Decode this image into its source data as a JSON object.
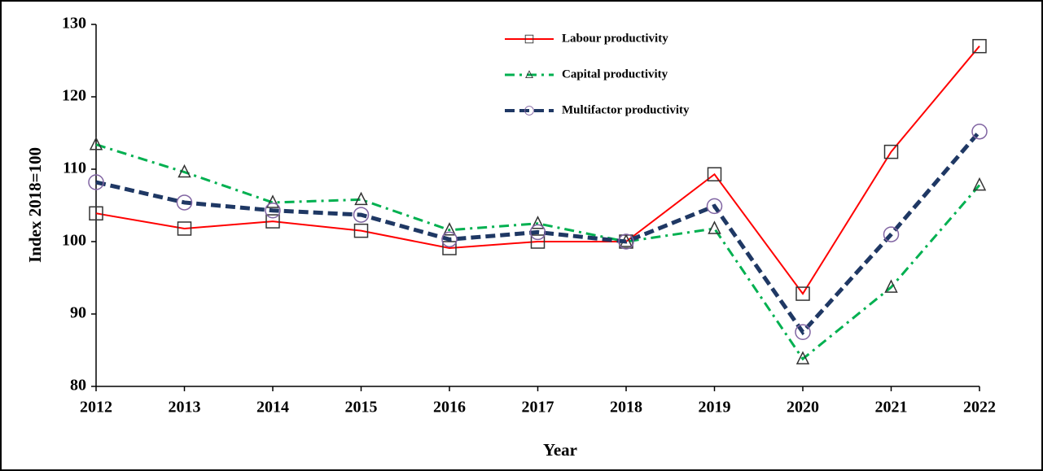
{
  "chart_data": {
    "type": "line",
    "ylabel": "Index 2018=100",
    "xlabel": "Year",
    "x": [
      2012,
      2013,
      2014,
      2015,
      2016,
      2017,
      2018,
      2019,
      2020,
      2021,
      2022
    ],
    "xlim": [
      2012,
      2022
    ],
    "xticks": [
      2012,
      2013,
      2014,
      2015,
      2016,
      2017,
      2018,
      2019,
      2020,
      2021,
      2022
    ],
    "ylim": [
      80,
      130
    ],
    "yticks": [
      80,
      90,
      100,
      110,
      120,
      130
    ],
    "legend": "top",
    "series": [
      {
        "name": "Labour productivity",
        "color": "#ff0000",
        "marker": "square",
        "marker_color": "#333333",
        "line_style": "solid",
        "values": [
          103.9,
          101.8,
          102.8,
          101.5,
          99.1,
          100.0,
          100.0,
          109.3,
          92.8,
          112.4,
          127.0
        ]
      },
      {
        "name": "Capital productivity",
        "color": "#00b050",
        "marker": "triangle",
        "marker_color": "#333333",
        "line_style": "dashdot",
        "values": [
          113.4,
          109.6,
          105.4,
          105.8,
          101.6,
          102.5,
          100.0,
          101.8,
          83.8,
          93.7,
          107.8
        ]
      },
      {
        "name": "Multifactor productivity",
        "color": "#1f3864",
        "marker": "circle",
        "marker_color": "#8064a2",
        "line_style": "dashed",
        "values": [
          108.2,
          105.4,
          104.3,
          103.7,
          100.3,
          101.3,
          100.0,
          104.9,
          87.5,
          101.0,
          115.2
        ]
      }
    ]
  }
}
